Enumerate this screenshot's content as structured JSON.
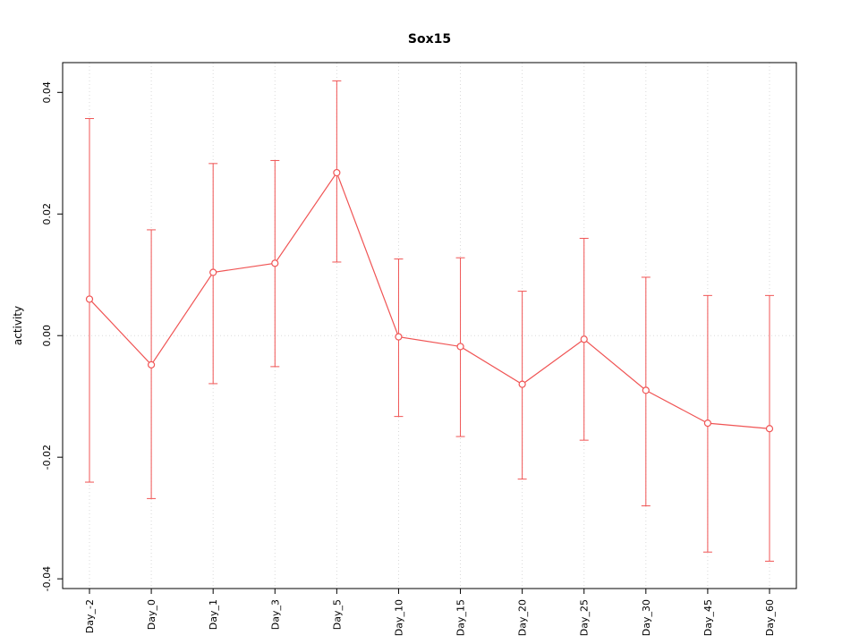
{
  "chart_data": {
    "type": "line",
    "title": "Sox15",
    "xlabel": "",
    "ylabel": "activity",
    "categories": [
      "Day_-2",
      "Day_0",
      "Day_1",
      "Day_3",
      "Day_5",
      "Day_10",
      "Day_15",
      "Day_20",
      "Day_25",
      "Day_30",
      "Day_45",
      "Day_60"
    ],
    "values": [
      0.006,
      -0.0048,
      0.0104,
      0.0119,
      0.0268,
      -0.0002,
      -0.0018,
      -0.008,
      -0.0006,
      -0.009,
      -0.0144,
      -0.0153
    ],
    "error_high": [
      0.0357,
      0.0174,
      0.0283,
      0.0288,
      0.0419,
      0.0126,
      0.0128,
      0.0073,
      0.016,
      0.0096,
      0.0066,
      0.0066
    ],
    "error_low": [
      -0.0241,
      -0.0268,
      -0.0079,
      -0.0051,
      0.0121,
      -0.0133,
      -0.0166,
      -0.0236,
      -0.0172,
      -0.028,
      -0.0356,
      -0.0371
    ],
    "ylim": [
      -0.0416,
      0.0449
    ],
    "yticks": [
      -0.04,
      -0.02,
      0,
      0.02,
      0.04
    ],
    "ytick_labels": [
      "-0.04",
      "-0.02",
      "0.00",
      "0.02",
      "0.04"
    ],
    "series_color": "#f05454",
    "grid_color": "#d9d9d9",
    "axis_color": "#000000",
    "grid": true,
    "legend": "none"
  }
}
